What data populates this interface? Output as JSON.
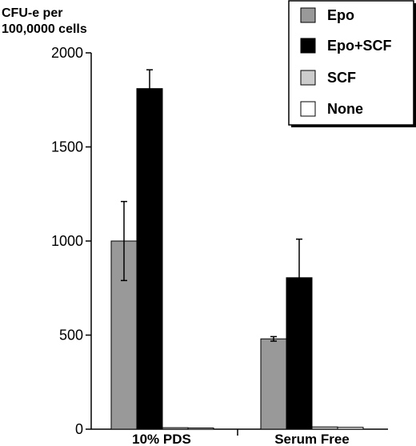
{
  "chart_data": {
    "type": "bar",
    "title": "",
    "ylabel": "CFU-e per 100,0000 cells",
    "ylabel_lines": [
      "CFU-e per",
      "100,0000 cells"
    ],
    "xlabel": "",
    "categories": [
      "10% PDS",
      "Serum Free"
    ],
    "ylim": [
      0,
      2000
    ],
    "yticks": [
      0,
      500,
      1000,
      1500,
      2000
    ],
    "grid": false,
    "legend_position": "top-right",
    "series": [
      {
        "name": "Epo",
        "color": "#999999",
        "values": [
          1000,
          480
        ],
        "errors": [
          210,
          12
        ]
      },
      {
        "name": "Epo+SCF",
        "color": "#000000",
        "values": [
          1810,
          805
        ],
        "errors": [
          100,
          205
        ]
      },
      {
        "name": "SCF",
        "color": "#cccccc",
        "values": [
          8,
          12
        ],
        "errors": [
          0,
          0
        ]
      },
      {
        "name": "None",
        "color": "#ffffff",
        "values": [
          4,
          10
        ],
        "errors": [
          0,
          0
        ]
      }
    ]
  }
}
